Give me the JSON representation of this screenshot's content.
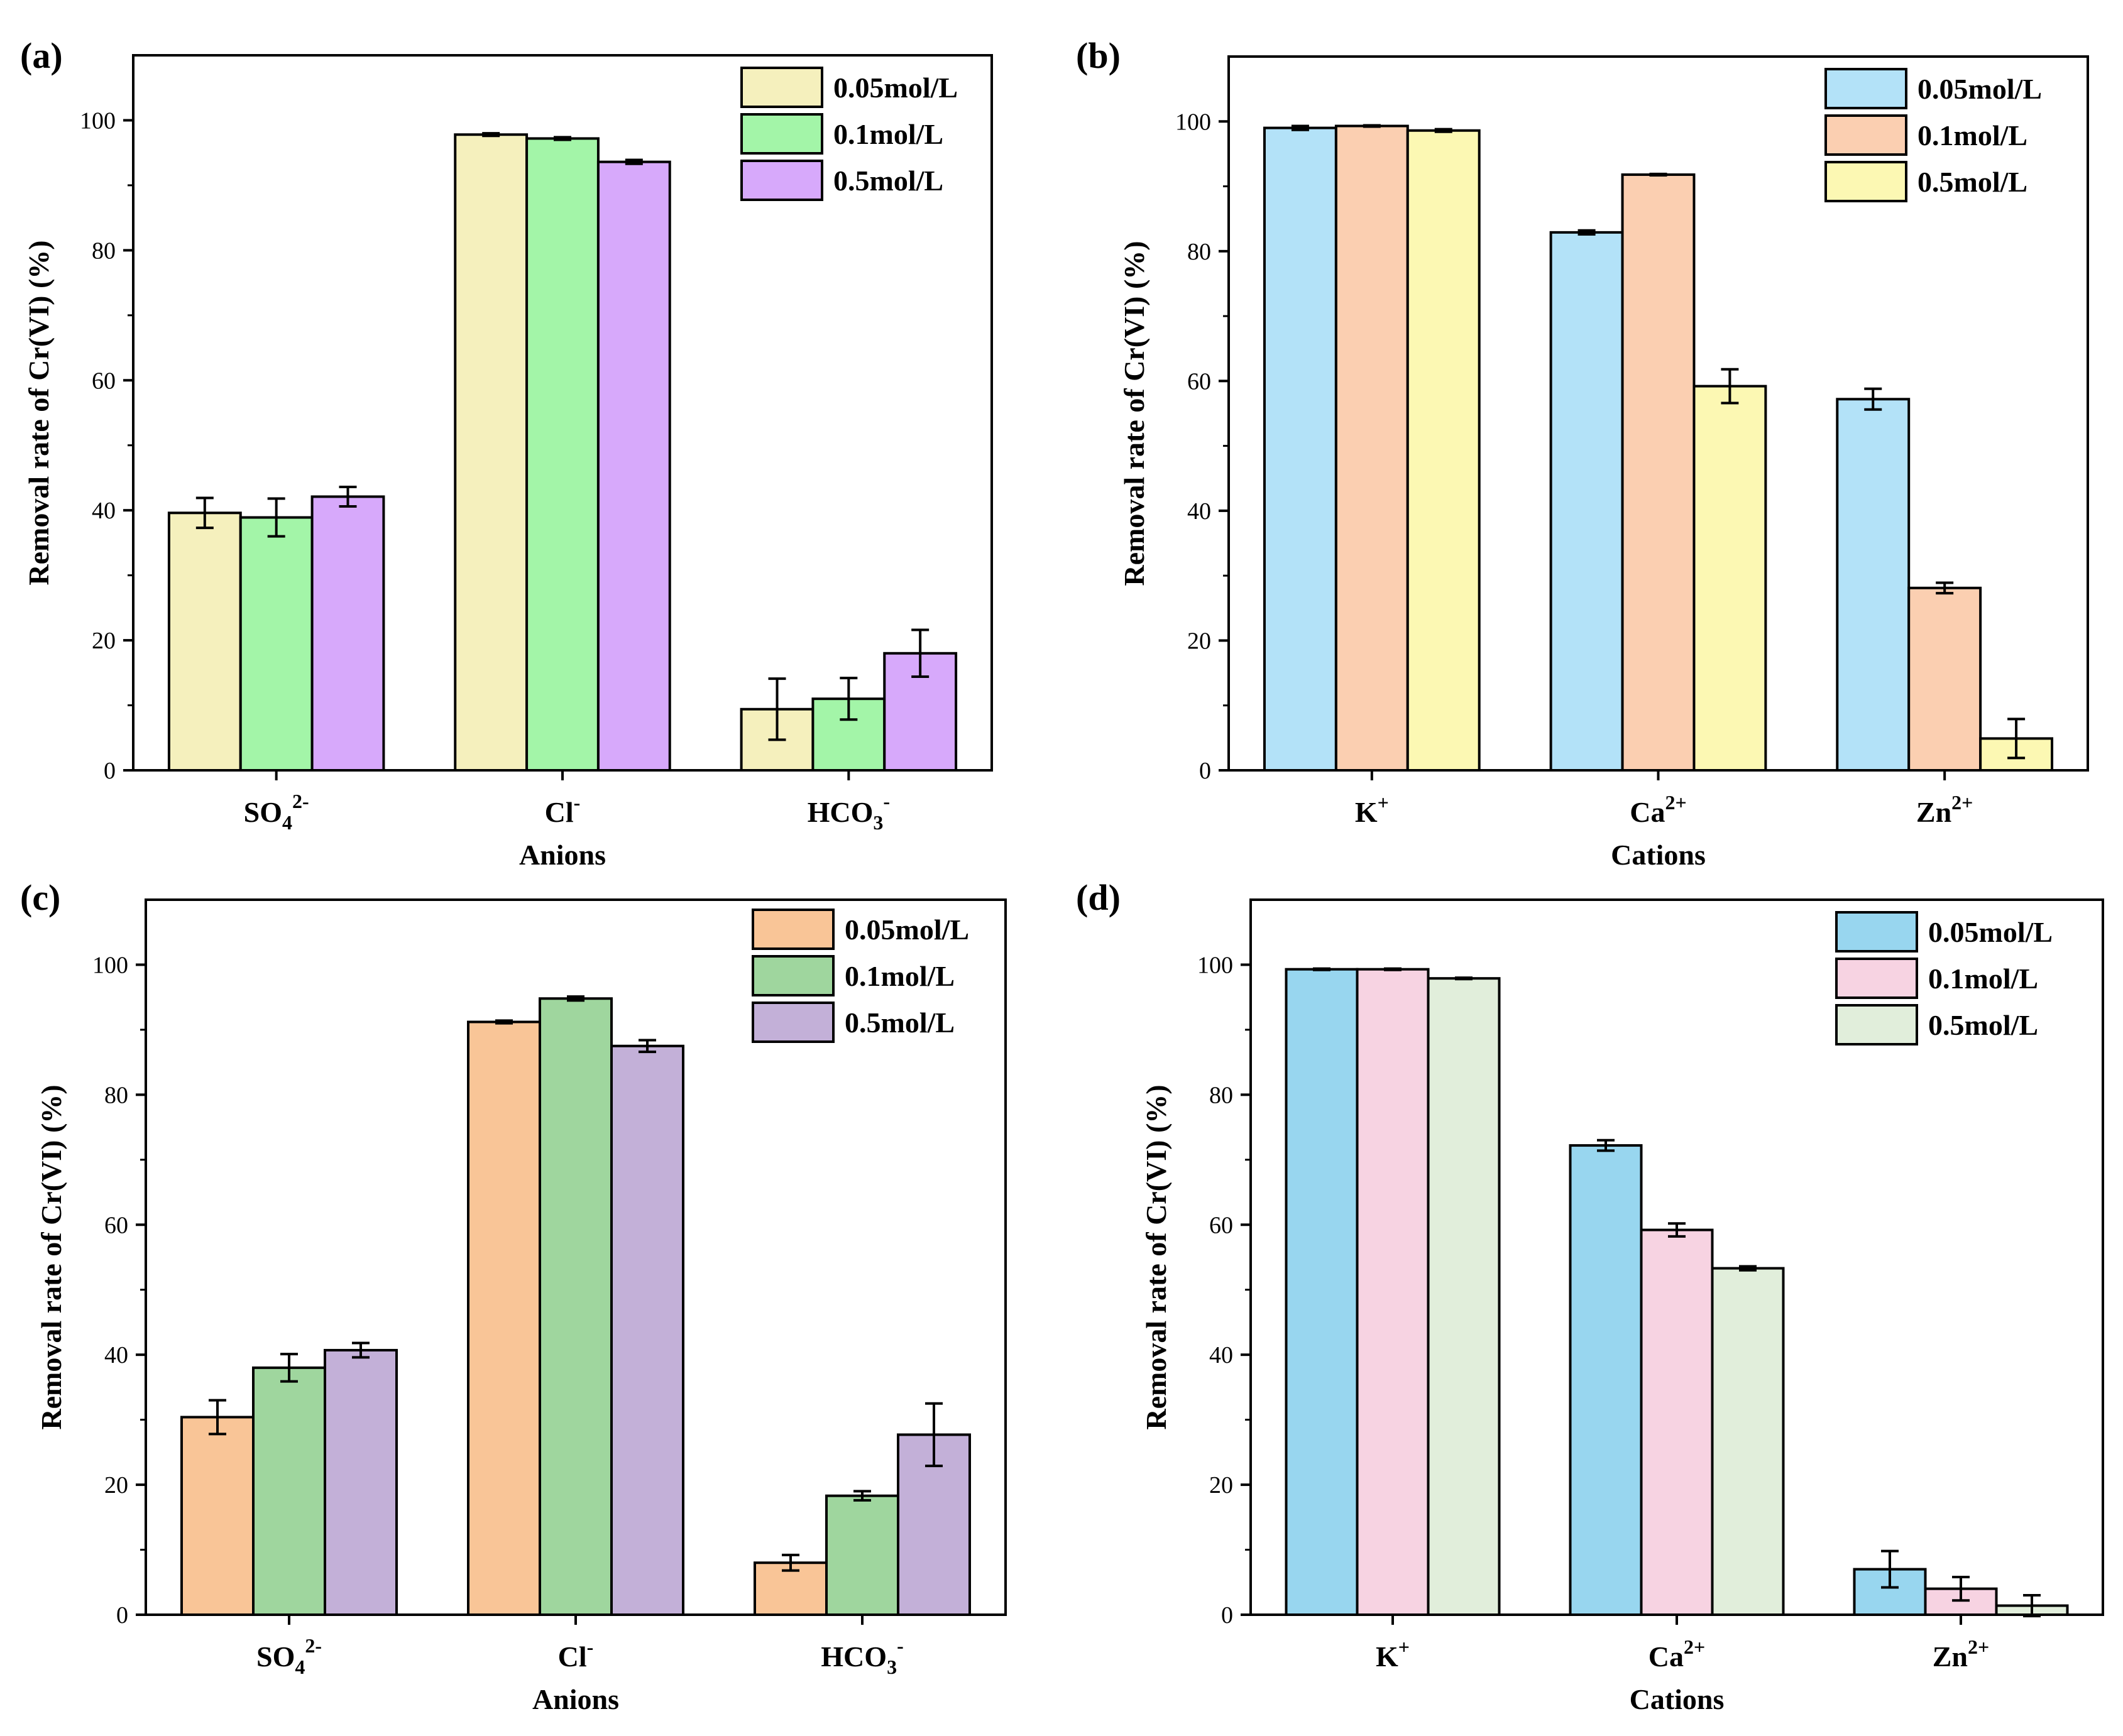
{
  "chart_data": [
    {
      "type": "bar",
      "panel": "(a)",
      "xlabel": "Anions",
      "ylabel": "Removal rate of Cr(VI) (%)",
      "ylim": [
        0,
        110
      ],
      "yticks": [
        0,
        20,
        40,
        60,
        80,
        100
      ],
      "categories": [
        {
          "base": "SO",
          "sub": "4",
          "sup": "2-"
        },
        {
          "base": "Cl",
          "sub": "",
          "sup": "-"
        },
        {
          "base": "HCO",
          "sub": "3",
          "sup": "-"
        }
      ],
      "series": [
        {
          "name": "0.05mol/L",
          "color": "#f5f0bd",
          "values": [
            39.6,
            97.8,
            9.4
          ],
          "errors": [
            2.3,
            0.2,
            4.7
          ]
        },
        {
          "name": "0.1mol/L",
          "color": "#a3f5a8",
          "values": [
            38.9,
            97.2,
            11.0
          ],
          "errors": [
            2.9,
            0.2,
            3.2
          ]
        },
        {
          "name": "0.5mol/L",
          "color": "#d7a9fb",
          "values": [
            42.1,
            93.6,
            18.0
          ],
          "errors": [
            1.5,
            0.3,
            3.6
          ]
        }
      ]
    },
    {
      "type": "bar",
      "panel": "(b)",
      "xlabel": "Cations",
      "ylabel": "Removal rate of Cr(VI) (%)",
      "ylim": [
        0,
        110
      ],
      "yticks": [
        0,
        20,
        40,
        60,
        80,
        100
      ],
      "categories": [
        {
          "base": "K",
          "sub": "",
          "sup": "+"
        },
        {
          "base": "Ca",
          "sub": "",
          "sup": "2+"
        },
        {
          "base": "Zn",
          "sub": "",
          "sup": "2+"
        }
      ],
      "series": [
        {
          "name": "0.05mol/L",
          "color": "#b3e2f8",
          "values": [
            99.0,
            82.9,
            57.2
          ],
          "errors": [
            0.3,
            0.3,
            1.6
          ]
        },
        {
          "name": "0.1mol/L",
          "color": "#fbcfb1",
          "values": [
            99.3,
            91.8,
            28.1
          ],
          "errors": [
            0.1,
            0.1,
            0.8
          ]
        },
        {
          "name": "0.5mol/L",
          "color": "#fcf8b3",
          "values": [
            98.6,
            59.2,
            4.9
          ],
          "errors": [
            0.2,
            2.6,
            3.0
          ]
        }
      ]
    },
    {
      "type": "bar",
      "panel": "(c)",
      "xlabel": "Anions",
      "ylabel": "Removal rate of Cr(VI) (%)",
      "ylim": [
        0,
        110
      ],
      "yticks": [
        0,
        20,
        40,
        60,
        80,
        100
      ],
      "categories": [
        {
          "base": "SO",
          "sub": "4",
          "sup": "2-"
        },
        {
          "base": "Cl",
          "sub": "",
          "sup": "-"
        },
        {
          "base": "HCO",
          "sub": "3",
          "sup": "-"
        }
      ],
      "series": [
        {
          "name": "0.05mol/L",
          "color": "#f9c597",
          "values": [
            30.4,
            91.2,
            8.0
          ],
          "errors": [
            2.6,
            0.2,
            1.2
          ]
        },
        {
          "name": "0.1mol/L",
          "color": "#9fd69e",
          "values": [
            38.0,
            94.8,
            18.3
          ],
          "errors": [
            2.1,
            0.3,
            0.7
          ]
        },
        {
          "name": "0.5mol/L",
          "color": "#c3b0d8",
          "values": [
            40.7,
            87.5,
            27.7
          ],
          "errors": [
            1.1,
            0.9,
            4.8
          ]
        }
      ]
    },
    {
      "type": "bar",
      "panel": "(d)",
      "xlabel": "Cations",
      "ylabel": "Removal rate of Cr(VI) (%)",
      "ylim": [
        0,
        110
      ],
      "yticks": [
        0,
        20,
        40,
        60,
        80,
        100
      ],
      "categories": [
        {
          "base": "K",
          "sub": "",
          "sup": "+"
        },
        {
          "base": "Ca",
          "sub": "",
          "sup": "2+"
        },
        {
          "base": "Zn",
          "sub": "",
          "sup": "2+"
        }
      ],
      "series": [
        {
          "name": "0.05mol/L",
          "color": "#98d6ef",
          "values": [
            99.3,
            72.2,
            7.0
          ],
          "errors": [
            0.1,
            0.8,
            2.8
          ]
        },
        {
          "name": "0.1mol/L",
          "color": "#f7d3e2",
          "values": [
            99.3,
            59.2,
            4.0
          ],
          "errors": [
            0.1,
            1.0,
            1.8
          ]
        },
        {
          "name": "0.5mol/L",
          "color": "#e1eedb",
          "values": [
            97.9,
            53.3,
            1.4
          ],
          "errors": [
            0.1,
            0.3,
            1.6
          ]
        }
      ]
    }
  ]
}
